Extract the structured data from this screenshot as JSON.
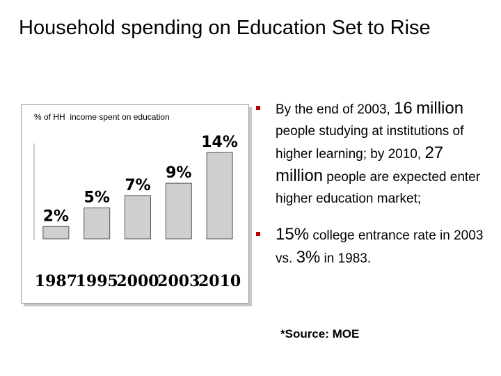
{
  "slide": {
    "title": "Household spending on Education Set to Rise"
  },
  "chart_data": {
    "type": "bar",
    "title": "% of HH  income spent on education",
    "categories": [
      "1987",
      "1995",
      "2000",
      "2003",
      "2010"
    ],
    "values": [
      2,
      5,
      7,
      9,
      14
    ],
    "value_labels": [
      "2%",
      "5%",
      "7%",
      "9%",
      "14%"
    ],
    "unit": "%",
    "ylim": [
      0,
      16
    ],
    "grid": false,
    "bar_color": "#cfcfcf"
  },
  "bullets": [
    {
      "parts": [
        {
          "text": "By the end of 2003, ",
          "big": false
        },
        {
          "text": "16",
          "big": true
        },
        {
          "text": " ",
          "big": false
        },
        {
          "text": "million",
          "big": true
        },
        {
          "text": " people studying at institutions of higher learning; by 2010, ",
          "big": false
        },
        {
          "text": "27",
          "big": true
        },
        {
          "text": " ",
          "big": false
        },
        {
          "text": "million",
          "big": true
        },
        {
          "text": " people are expected enter higher education market;",
          "big": false
        }
      ]
    },
    {
      "parts": [
        {
          "text": "15%",
          "big": true
        },
        {
          "text": " college entrance rate in 2003  vs. ",
          "big": false
        },
        {
          "text": "3%",
          "big": true
        },
        {
          "text": " in 1983.",
          "big": false
        }
      ]
    }
  ],
  "source": "*Source: MOE",
  "colors": {
    "bullet_marker": "#c00000"
  }
}
